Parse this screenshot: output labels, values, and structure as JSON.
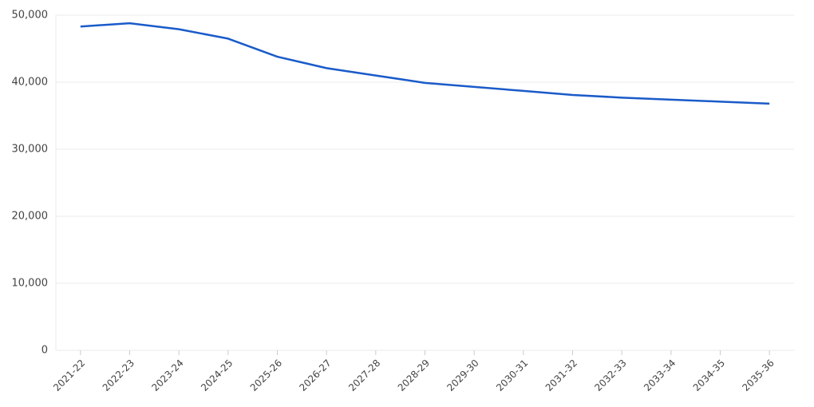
{
  "chart_data": {
    "type": "line",
    "categories": [
      "2021-22",
      "2022-23",
      "2023-24",
      "2024-25",
      "2025-26",
      "2026-27",
      "2027-28",
      "2028-29",
      "2029-30",
      "2030-31",
      "2031-32",
      "2032-33",
      "2033-34",
      "2034-35",
      "2035-36"
    ],
    "series": [
      {
        "color": "#1a5bc9",
        "values": [
          48300,
          48800,
          47900,
          46500,
          43800,
          42100,
          41000,
          39900,
          39300,
          38700,
          38100,
          37700,
          37400,
          37100,
          36800
        ]
      }
    ],
    "ylim": [
      0,
      50000
    ],
    "yticks": [
      0,
      {
        "value": 10000,
        "label": "10,000"
      },
      {
        "value": 20000,
        "label": "20,000"
      },
      {
        "value": 30000,
        "label": "30,000"
      },
      {
        "value": 40000,
        "label": "40,000"
      },
      {
        "value": 50000,
        "label": "50,000"
      }
    ],
    "grid": true
  }
}
